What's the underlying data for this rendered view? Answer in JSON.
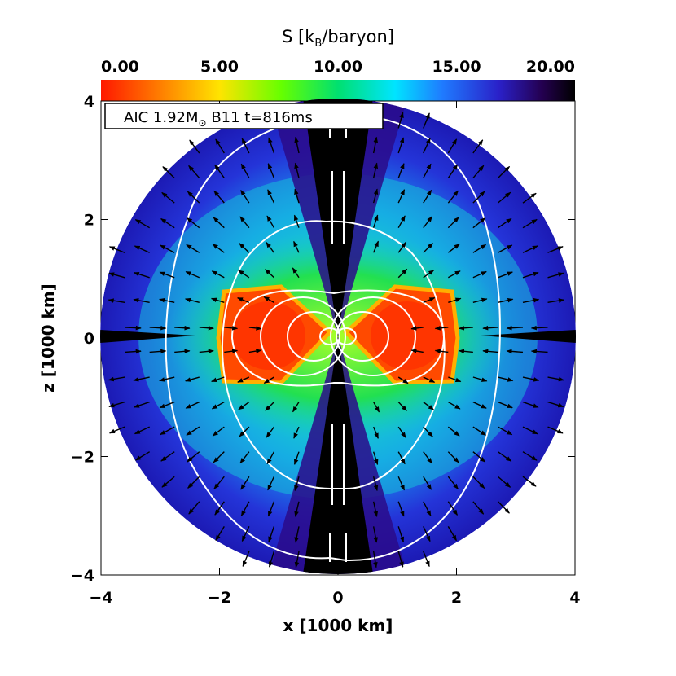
{
  "chart_data": {
    "type": "heatmap",
    "colorbar": {
      "title": "S [k",
      "title_sub": "B",
      "title_tail": "/baryon]",
      "range": [
        0,
        20
      ],
      "ticks": [
        "0.00",
        "5.00",
        "10.00",
        "15.00",
        "20.00"
      ],
      "tick_values": [
        0,
        5,
        10,
        15,
        20
      ],
      "colors": [
        "#ff0000",
        "#ff8c00",
        "#ffff00",
        "#00ff00",
        "#00ffff",
        "#0080ff",
        "#0000c0",
        "#000033"
      ]
    },
    "xlabel": "x [1000 km]",
    "ylabel": "z [1000 km]",
    "xlim": [
      -4,
      4
    ],
    "ylim": [
      -4,
      4
    ],
    "xticks": [
      "−4",
      "−2",
      "0",
      "2",
      "4"
    ],
    "xtick_values": [
      -4,
      -2,
      0,
      2,
      4
    ],
    "yticks": [
      "−4",
      "−2",
      "0",
      "2",
      "4"
    ],
    "ytick_values": [
      -4,
      -2,
      0,
      2,
      4
    ],
    "annotation": {
      "prefix": "AIC 1.92M",
      "sub": "⊙",
      "suffix": " B11  t=816ms"
    },
    "domain_radius": 4,
    "regions": [
      {
        "name": "high-entropy-jet",
        "entropy": 20
      },
      {
        "name": "outer-envelope",
        "entropy": 16
      },
      {
        "name": "mid-shell",
        "entropy": 12
      },
      {
        "name": "inner-shell",
        "entropy": 9
      },
      {
        "name": "torus-core",
        "entropy": 1.5
      }
    ]
  }
}
